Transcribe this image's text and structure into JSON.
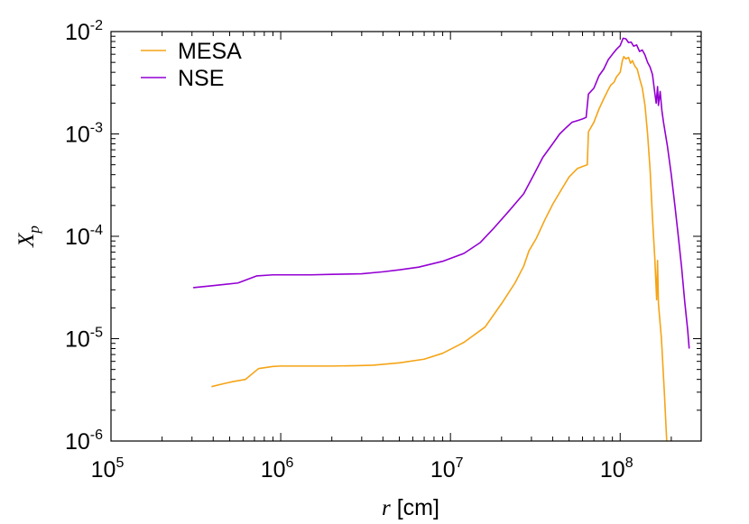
{
  "chart_data": {
    "type": "line",
    "title": "",
    "xlabel": {
      "var": "r",
      "unit": " [cm]"
    },
    "ylabel": {
      "base": "X",
      "sub": "p"
    },
    "xscale": "log",
    "yscale": "log",
    "xlim": [
      100000,
      300000000
    ],
    "ylim": [
      1e-06,
      0.01
    ],
    "grid": false,
    "legend_position": "top-left",
    "x_ticks": [
      {
        "value": 100000,
        "base": "10",
        "exp": "5"
      },
      {
        "value": 1000000,
        "base": "10",
        "exp": "6"
      },
      {
        "value": 10000000,
        "base": "10",
        "exp": "7"
      },
      {
        "value": 100000000,
        "base": "10",
        "exp": "8"
      }
    ],
    "y_ticks": [
      {
        "value": 1e-06,
        "base": "10",
        "exp": "-6"
      },
      {
        "value": 1e-05,
        "base": "10",
        "exp": "-5"
      },
      {
        "value": 0.0001,
        "base": "10",
        "exp": "-4"
      },
      {
        "value": 0.001,
        "base": "10",
        "exp": "-3"
      },
      {
        "value": 0.01,
        "base": "10",
        "exp": "-2"
      }
    ],
    "series": [
      {
        "name": "MESA",
        "color": "#f5a416",
        "points": [
          [
            391000,
            3.4e-06
          ],
          [
            450000,
            3.6e-06
          ],
          [
            520000,
            3.8e-06
          ],
          [
            620000,
            4e-06
          ],
          [
            740000,
            5.1e-06
          ],
          [
            900000,
            5.35e-06
          ],
          [
            1000000,
            5.4e-06
          ],
          [
            1500000,
            5.4e-06
          ],
          [
            2000000,
            5.4e-06
          ],
          [
            2800000,
            5.45e-06
          ],
          [
            3500000,
            5.5e-06
          ],
          [
            5000000,
            5.8e-06
          ],
          [
            7000000,
            6.3e-06
          ],
          [
            9000000,
            7.2e-06
          ],
          [
            12000000,
            9.2e-06
          ],
          [
            16000000,
            1.3e-05
          ],
          [
            20000000,
            2.2e-05
          ],
          [
            24000000,
            3.5e-05
          ],
          [
            27000000,
            5.1e-05
          ],
          [
            29000000,
            7.2e-05
          ],
          [
            32000000,
            9.5e-05
          ],
          [
            36000000,
            0.000145
          ],
          [
            40000000,
            0.000205
          ],
          [
            45000000,
            0.000285
          ],
          [
            50000000,
            0.00038
          ],
          [
            56000000,
            0.00046
          ],
          [
            64000000,
            0.0005
          ],
          [
            65000000,
            0.00105
          ],
          [
            70000000,
            0.0013
          ],
          [
            75000000,
            0.00175
          ],
          [
            80000000,
            0.0022
          ],
          [
            85000000,
            0.0027
          ],
          [
            88000000,
            0.003
          ],
          [
            92000000,
            0.0032
          ],
          [
            95000000,
            0.0036
          ],
          [
            100000000,
            0.004
          ],
          [
            103000000,
            0.0052
          ],
          [
            105000000,
            0.0057
          ],
          [
            108000000,
            0.0054
          ],
          [
            112000000,
            0.0056
          ],
          [
            115000000,
            0.0049
          ],
          [
            118000000,
            0.0052
          ],
          [
            122000000,
            0.0046
          ],
          [
            126000000,
            0.0043
          ],
          [
            130000000,
            0.0035
          ],
          [
            135000000,
            0.0028
          ],
          [
            140000000,
            0.0019
          ],
          [
            145000000,
            0.001
          ],
          [
            150000000,
            0.00045
          ],
          [
            155000000,
            0.00015
          ],
          [
            160000000,
            6e-05
          ],
          [
            164000000,
            2.4e-05
          ],
          [
            166000000,
            5.8e-05
          ],
          [
            168000000,
            2.2e-05
          ],
          [
            175000000,
            1e-05
          ],
          [
            182000000,
            3e-06
          ],
          [
            188000000,
            1e-06
          ]
        ]
      },
      {
        "name": "NSE",
        "color": "#9400d3",
        "points": [
          [
            305000,
            3.15e-05
          ],
          [
            400000,
            3.3e-05
          ],
          [
            560000,
            3.5e-05
          ],
          [
            720000,
            4.1e-05
          ],
          [
            900000,
            4.2e-05
          ],
          [
            1000000,
            4.2e-05
          ],
          [
            1500000,
            4.2e-05
          ],
          [
            2000000,
            4.25e-05
          ],
          [
            3000000,
            4.3e-05
          ],
          [
            4000000,
            4.5e-05
          ],
          [
            5000000,
            4.7e-05
          ],
          [
            6500000,
            5e-05
          ],
          [
            9000000,
            5.7e-05
          ],
          [
            12000000,
            6.8e-05
          ],
          [
            15000000,
            8.7e-05
          ],
          [
            18000000,
            0.00012
          ],
          [
            22000000,
            0.000175
          ],
          [
            27000000,
            0.00026
          ],
          [
            31000000,
            0.0004
          ],
          [
            35000000,
            0.00059
          ],
          [
            40000000,
            0.0008
          ],
          [
            44000000,
            0.001
          ],
          [
            48000000,
            0.00115
          ],
          [
            52000000,
            0.0013
          ],
          [
            56000000,
            0.00135
          ],
          [
            60000000,
            0.0014
          ],
          [
            63000000,
            0.00145
          ],
          [
            65000000,
            0.00245
          ],
          [
            70000000,
            0.0028
          ],
          [
            75000000,
            0.0037
          ],
          [
            80000000,
            0.0043
          ],
          [
            85000000,
            0.0053
          ],
          [
            90000000,
            0.006
          ],
          [
            95000000,
            0.0067
          ],
          [
            100000000,
            0.0073
          ],
          [
            104000000,
            0.0086
          ],
          [
            108000000,
            0.0085
          ],
          [
            112000000,
            0.0078
          ],
          [
            116000000,
            0.0079
          ],
          [
            120000000,
            0.0072
          ],
          [
            125000000,
            0.0074
          ],
          [
            130000000,
            0.0064
          ],
          [
            135000000,
            0.0066
          ],
          [
            140000000,
            0.0059
          ],
          [
            145000000,
            0.005
          ],
          [
            150000000,
            0.0045
          ],
          [
            155000000,
            0.0038
          ],
          [
            160000000,
            0.0025
          ],
          [
            163000000,
            0.002
          ],
          [
            166000000,
            0.0029
          ],
          [
            168000000,
            0.0019
          ],
          [
            172000000,
            0.0026
          ],
          [
            176000000,
            0.0017
          ],
          [
            180000000,
            0.0013
          ],
          [
            190000000,
            0.00075
          ],
          [
            200000000,
            0.0004
          ],
          [
            210000000,
            0.0002
          ],
          [
            220000000,
            0.0001
          ],
          [
            230000000,
            5e-05
          ],
          [
            240000000,
            2.3e-05
          ],
          [
            250000000,
            1.2e-05
          ],
          [
            255000000,
            8e-06
          ]
        ]
      }
    ]
  }
}
